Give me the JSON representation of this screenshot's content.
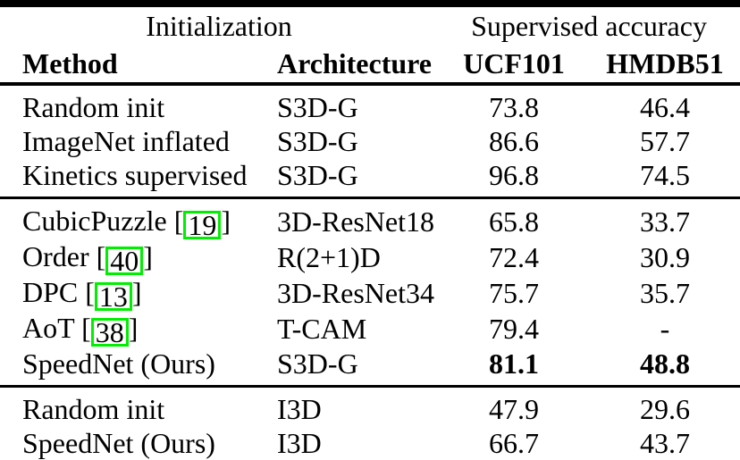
{
  "table": {
    "header_groups": [
      {
        "label": "Initialization",
        "span": 2
      },
      {
        "label": "Supervised accuracy",
        "span": 2
      }
    ],
    "columns": [
      {
        "key": "method",
        "label": "Method"
      },
      {
        "key": "architecture",
        "label": "Architecture"
      },
      {
        "key": "ucf101",
        "label": "UCF101"
      },
      {
        "key": "hmdb51",
        "label": "HMDB51"
      }
    ],
    "citation_brackets": {
      "open": "[",
      "close": "]"
    },
    "citation_box_color": "#00ee00",
    "sections": [
      {
        "rows": [
          {
            "method": "Random init",
            "architecture": "S3D-G",
            "ucf101": "73.8",
            "hmdb51": "46.4"
          },
          {
            "method": "ImageNet inflated",
            "architecture": "S3D-G",
            "ucf101": "86.6",
            "hmdb51": "57.7"
          },
          {
            "method": "Kinetics supervised",
            "architecture": "S3D-G",
            "ucf101": "96.8",
            "hmdb51": "74.5"
          }
        ]
      },
      {
        "rows": [
          {
            "method": "CubicPuzzle",
            "citation": "19",
            "architecture": "3D-ResNet18",
            "ucf101": "65.8",
            "hmdb51": "33.7"
          },
          {
            "method": "Order",
            "citation": "40",
            "architecture": "R(2+1)D",
            "ucf101": "72.4",
            "hmdb51": "30.9"
          },
          {
            "method": "DPC",
            "citation": "13",
            "architecture": "3D-ResNet34",
            "ucf101": "75.7",
            "hmdb51": "35.7"
          },
          {
            "method": "AoT",
            "citation": "38",
            "architecture": "T-CAM",
            "ucf101": "79.4",
            "hmdb51": "-"
          },
          {
            "method": "SpeedNet (Ours)",
            "architecture": "S3D-G",
            "ucf101": "81.1",
            "hmdb51": "48.8",
            "bold_values": true
          }
        ]
      },
      {
        "rows": [
          {
            "method": "Random init",
            "architecture": "I3D",
            "ucf101": "47.9",
            "hmdb51": "29.6"
          },
          {
            "method": "SpeedNet (Ours)",
            "architecture": "I3D",
            "ucf101": "66.7",
            "hmdb51": "43.7"
          }
        ]
      }
    ]
  }
}
